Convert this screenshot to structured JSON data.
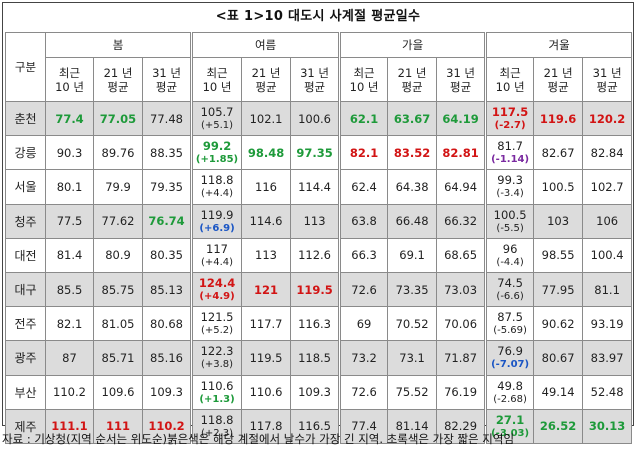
{
  "title": "<표 1>10 대도시 사계절 평균일수",
  "header": {
    "gubun": "구분",
    "seasons": [
      "봄",
      "여름",
      "가을",
      "겨울"
    ],
    "sub": [
      {
        "line1": "최근",
        "line2": "10 년"
      },
      {
        "line1": "21 년",
        "line2": "평균"
      },
      {
        "line1": "31 년",
        "line2": "평균"
      }
    ]
  },
  "rows": [
    {
      "city": "춘천",
      "cells": [
        {
          "v": "77.4",
          "c": "green"
        },
        {
          "v": "77.05",
          "c": "green"
        },
        {
          "v": "77.48"
        },
        {
          "v": "105.7",
          "d": "(+5.1)"
        },
        {
          "v": "102.1"
        },
        {
          "v": "100.6"
        },
        {
          "v": "62.1",
          "c": "green"
        },
        {
          "v": "63.67",
          "c": "green"
        },
        {
          "v": "64.19",
          "c": "green"
        },
        {
          "v": "117.5",
          "d": "(-2.7)",
          "c": "red",
          "dc": "red"
        },
        {
          "v": "119.6",
          "c": "red"
        },
        {
          "v": "120.2",
          "c": "red"
        }
      ]
    },
    {
      "city": "강릉",
      "cells": [
        {
          "v": "90.3"
        },
        {
          "v": "89.76"
        },
        {
          "v": "88.35"
        },
        {
          "v": "99.2",
          "d": "(+1.85)",
          "c": "green",
          "dc": "green"
        },
        {
          "v": "98.48",
          "c": "green"
        },
        {
          "v": "97.35",
          "c": "green"
        },
        {
          "v": "82.1",
          "c": "red"
        },
        {
          "v": "83.52",
          "c": "red"
        },
        {
          "v": "82.81",
          "c": "red"
        },
        {
          "v": "81.7",
          "d": "(-1.14)",
          "dc": "purple"
        },
        {
          "v": "82.67"
        },
        {
          "v": "82.84"
        }
      ]
    },
    {
      "city": "서울",
      "cells": [
        {
          "v": "80.1"
        },
        {
          "v": "79.9"
        },
        {
          "v": "79.35"
        },
        {
          "v": "118.8",
          "d": "(+4.4)"
        },
        {
          "v": "116"
        },
        {
          "v": "114.4"
        },
        {
          "v": "62.4"
        },
        {
          "v": "64.38"
        },
        {
          "v": "64.94"
        },
        {
          "v": "99.3",
          "d": "(-3.4)"
        },
        {
          "v": "100.5"
        },
        {
          "v": "102.7"
        }
      ]
    },
    {
      "city": "청주",
      "cells": [
        {
          "v": "77.5"
        },
        {
          "v": "77.62"
        },
        {
          "v": "76.74",
          "c": "green"
        },
        {
          "v": "119.9",
          "d": "(+6.9)",
          "dc": "blue"
        },
        {
          "v": "114.6"
        },
        {
          "v": "113"
        },
        {
          "v": "63.8"
        },
        {
          "v": "66.48"
        },
        {
          "v": "66.32"
        },
        {
          "v": "100.5",
          "d": "(-5.5)"
        },
        {
          "v": "103"
        },
        {
          "v": "106"
        }
      ]
    },
    {
      "city": "대전",
      "cells": [
        {
          "v": "81.4"
        },
        {
          "v": "80.9"
        },
        {
          "v": "80.35"
        },
        {
          "v": "117",
          "d": "(+4.4)"
        },
        {
          "v": "113"
        },
        {
          "v": "112.6"
        },
        {
          "v": "66.3"
        },
        {
          "v": "69.1"
        },
        {
          "v": "68.65"
        },
        {
          "v": "96",
          "d": "(-4.4)"
        },
        {
          "v": "98.55"
        },
        {
          "v": "100.4"
        }
      ]
    },
    {
      "city": "대구",
      "cells": [
        {
          "v": "85.5"
        },
        {
          "v": "85.75"
        },
        {
          "v": "85.13"
        },
        {
          "v": "124.4",
          "d": "(+4.9)",
          "c": "red",
          "dc": "red"
        },
        {
          "v": "121",
          "c": "red"
        },
        {
          "v": "119.5",
          "c": "red"
        },
        {
          "v": "72.6"
        },
        {
          "v": "73.35"
        },
        {
          "v": "73.03"
        },
        {
          "v": "74.5",
          "d": "(-6.6)"
        },
        {
          "v": "77.95"
        },
        {
          "v": "81.1"
        }
      ]
    },
    {
      "city": "전주",
      "cells": [
        {
          "v": "82.1"
        },
        {
          "v": "81.05"
        },
        {
          "v": "80.68"
        },
        {
          "v": "121.5",
          "d": "(+5.2)"
        },
        {
          "v": "117.7"
        },
        {
          "v": "116.3"
        },
        {
          "v": "69"
        },
        {
          "v": "70.52"
        },
        {
          "v": "70.06"
        },
        {
          "v": "87.5",
          "d": "(-5.69)"
        },
        {
          "v": "90.62"
        },
        {
          "v": "93.19"
        }
      ]
    },
    {
      "city": "광주",
      "cells": [
        {
          "v": "87"
        },
        {
          "v": "85.71"
        },
        {
          "v": "85.16"
        },
        {
          "v": "122.3",
          "d": "(+3.8)"
        },
        {
          "v": "119.5"
        },
        {
          "v": "118.5"
        },
        {
          "v": "73.2"
        },
        {
          "v": "73.1"
        },
        {
          "v": "71.87"
        },
        {
          "v": "76.9",
          "d": "(-7.07)",
          "dc": "blue"
        },
        {
          "v": "80.67"
        },
        {
          "v": "83.97"
        }
      ]
    },
    {
      "city": "부산",
      "cells": [
        {
          "v": "110.2"
        },
        {
          "v": "109.6"
        },
        {
          "v": "109.3"
        },
        {
          "v": "110.6",
          "d": "(+1.3)",
          "dc": "green"
        },
        {
          "v": "110.6"
        },
        {
          "v": "109.3"
        },
        {
          "v": "72.6"
        },
        {
          "v": "75.52"
        },
        {
          "v": "76.19"
        },
        {
          "v": "49.8",
          "d": "(-2.68)"
        },
        {
          "v": "49.14"
        },
        {
          "v": "52.48"
        }
      ]
    },
    {
      "city": "제주",
      "cells": [
        {
          "v": "111.1",
          "c": "red"
        },
        {
          "v": "111",
          "c": "red"
        },
        {
          "v": "110.2",
          "c": "red"
        },
        {
          "v": "118.8",
          "d": "(+2.3)"
        },
        {
          "v": "117.8"
        },
        {
          "v": "116.5"
        },
        {
          "v": "77.4"
        },
        {
          "v": "81.14"
        },
        {
          "v": "82.29"
        },
        {
          "v": "27.1",
          "d": "(-3.03)",
          "c": "green",
          "dc": "green"
        },
        {
          "v": "26.52",
          "c": "green"
        },
        {
          "v": "30.13",
          "c": "green"
        }
      ]
    }
  ],
  "shaded_rows": [
    0,
    3,
    5,
    7,
    9
  ],
  "source_note": "자료 : 기상청(지역 순서는 위도순)붉은색은 해당 계절에서 날수가 가장 긴 지역. 초록색은 가장 짧은 지역임"
}
